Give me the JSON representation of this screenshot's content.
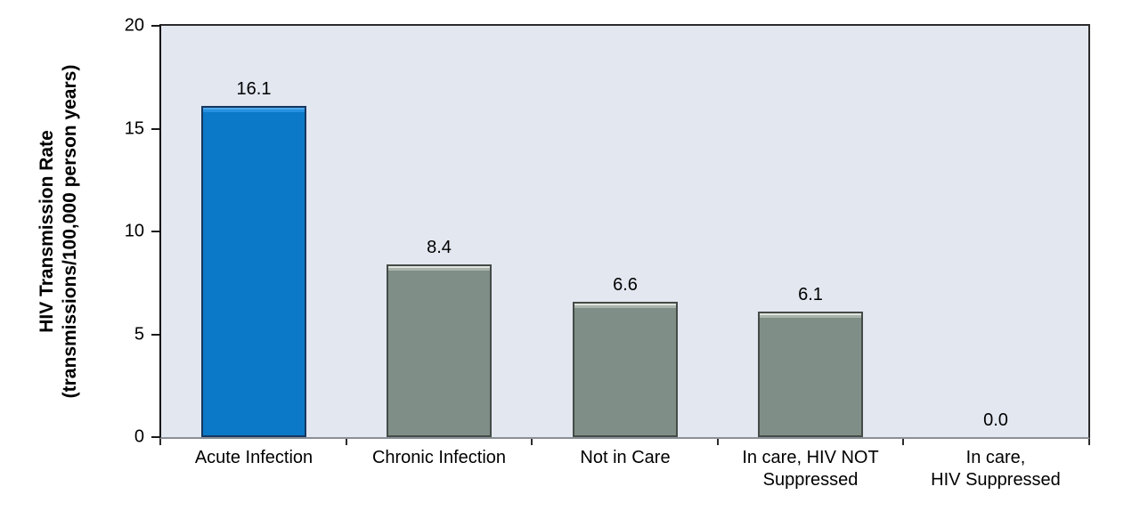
{
  "chart_data": {
    "type": "bar",
    "title": "",
    "ylabel_line1": "HIV Transmission Rate",
    "ylabel_line2": "(transmissions/100,000 person years)",
    "categories": [
      "Acute Infection",
      "Chronic Infection",
      "Not in Care",
      "In care, HIV NOT Suppressed",
      "In care, HIV Suppressed"
    ],
    "category_lines": [
      [
        "Acute Infection"
      ],
      [
        "Chronic Infection"
      ],
      [
        "Not in Care"
      ],
      [
        "In care, HIV NOT",
        "Suppressed"
      ],
      [
        "In care,",
        "HIV Suppressed"
      ]
    ],
    "values": [
      16.1,
      8.4,
      6.6,
      6.1,
      0.0
    ],
    "value_labels": [
      "16.1",
      "8.4",
      "6.6",
      "6.1",
      "0.0"
    ],
    "yticks": [
      0,
      5,
      10,
      15,
      20
    ],
    "ylim": [
      0,
      20
    ],
    "grid": false,
    "legend": false,
    "highlight_index": 0,
    "bar_styles": {
      "highlight": {
        "fill": "#0b79c7",
        "top_light": "#4ea6ea",
        "top_mid": "#2791e1",
        "border": "#16375f"
      },
      "default": {
        "fill": "#7f8e87",
        "top_light": "#dfe4de",
        "top_mid": "#a9b4ac",
        "border": "#454b47"
      }
    },
    "colors": {
      "plot_background": "#e2e7f0",
      "axis_color": "#1a1a1a",
      "baseline_color": "#8a9097",
      "text_color": "#000000"
    }
  }
}
